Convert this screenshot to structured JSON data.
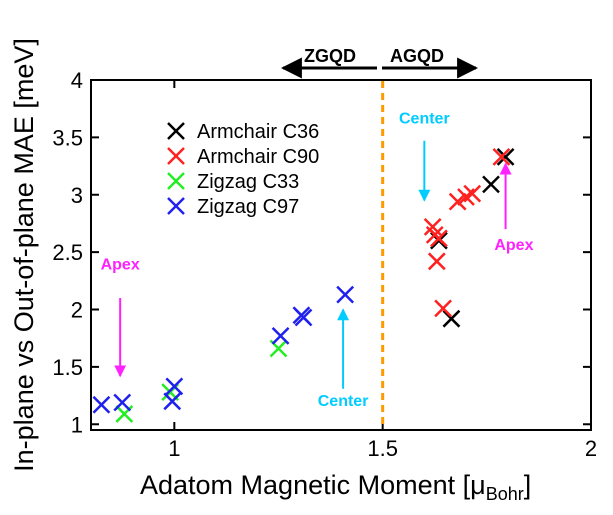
{
  "chart_data": {
    "type": "scatter",
    "title": "",
    "xlabel": "Adatom Magnetic Moment [μ",
    "xlabel_sub": "Bohr",
    "xlabel_close": "]",
    "ylabel": "In-plane vs  Out-of-plane MAE [meV]",
    "xlim": [
      0.8,
      2.0
    ],
    "ylim": [
      0.95,
      4.0
    ],
    "xticks": [
      1,
      1.5,
      2
    ],
    "xtick_labels": [
      "1",
      "1.5",
      "2"
    ],
    "yticks": [
      1,
      1.5,
      2,
      2.5,
      3,
      3.5,
      4
    ],
    "ytick_labels": [
      "1",
      "1.5",
      "2",
      "2.5",
      "3",
      "3.5",
      "4"
    ],
    "grid": false,
    "legend_position": "top-left",
    "divider_x": 1.5,
    "divider_color": "#ff9900",
    "region_labels": {
      "left": "ZGQD",
      "right": "AGQD"
    },
    "series": [
      {
        "name": "Armchair C36",
        "color": "#000000",
        "x": [
          1.635,
          1.665,
          1.76,
          1.795
        ],
        "y": [
          2.6,
          1.92,
          3.09,
          3.33
        ]
      },
      {
        "name": "Armchair C90",
        "color": "#ff2020",
        "x": [
          1.62,
          1.625,
          1.63,
          1.635,
          1.645,
          1.68,
          1.7,
          1.715,
          1.785
        ],
        "y": [
          2.72,
          2.65,
          2.42,
          2.62,
          2.01,
          2.94,
          2.98,
          3.01,
          3.33
        ]
      },
      {
        "name": "Zigzag C33",
        "color": "#22ee22",
        "x": [
          0.88,
          0.99,
          1.25
        ],
        "y": [
          1.09,
          1.28,
          1.66
        ]
      },
      {
        "name": "Zigzag C97",
        "color": "#2020ee",
        "x": [
          0.825,
          0.875,
          0.995,
          1.0,
          1.255,
          1.305,
          1.31,
          1.41
        ],
        "y": [
          1.17,
          1.19,
          1.2,
          1.33,
          1.77,
          1.95,
          1.93,
          2.13
        ]
      }
    ],
    "annotations": [
      {
        "text": "Apex",
        "color": "#ff22ff",
        "label_x": 0.87,
        "label_y": 2.35,
        "arrow_from_y": 2.1,
        "arrow_to_y": 1.42,
        "arrow_x": 0.87
      },
      {
        "text": "Center",
        "color": "#00ccff",
        "label_x": 1.405,
        "label_y": 1.16,
        "arrow_from_y": 1.31,
        "arrow_to_y": 2.0,
        "arrow_x": 1.405
      },
      {
        "text": "Center",
        "color": "#00ccff",
        "label_x": 1.6,
        "label_y": 3.62,
        "arrow_from_y": 3.47,
        "arrow_to_y": 2.95,
        "arrow_x": 1.6
      },
      {
        "text": "Apex",
        "color": "#ff22ff",
        "label_x": 1.815,
        "label_y": 2.52,
        "arrow_from_y": 2.7,
        "arrow_to_y": 3.27,
        "arrow_x": 1.795
      }
    ]
  }
}
